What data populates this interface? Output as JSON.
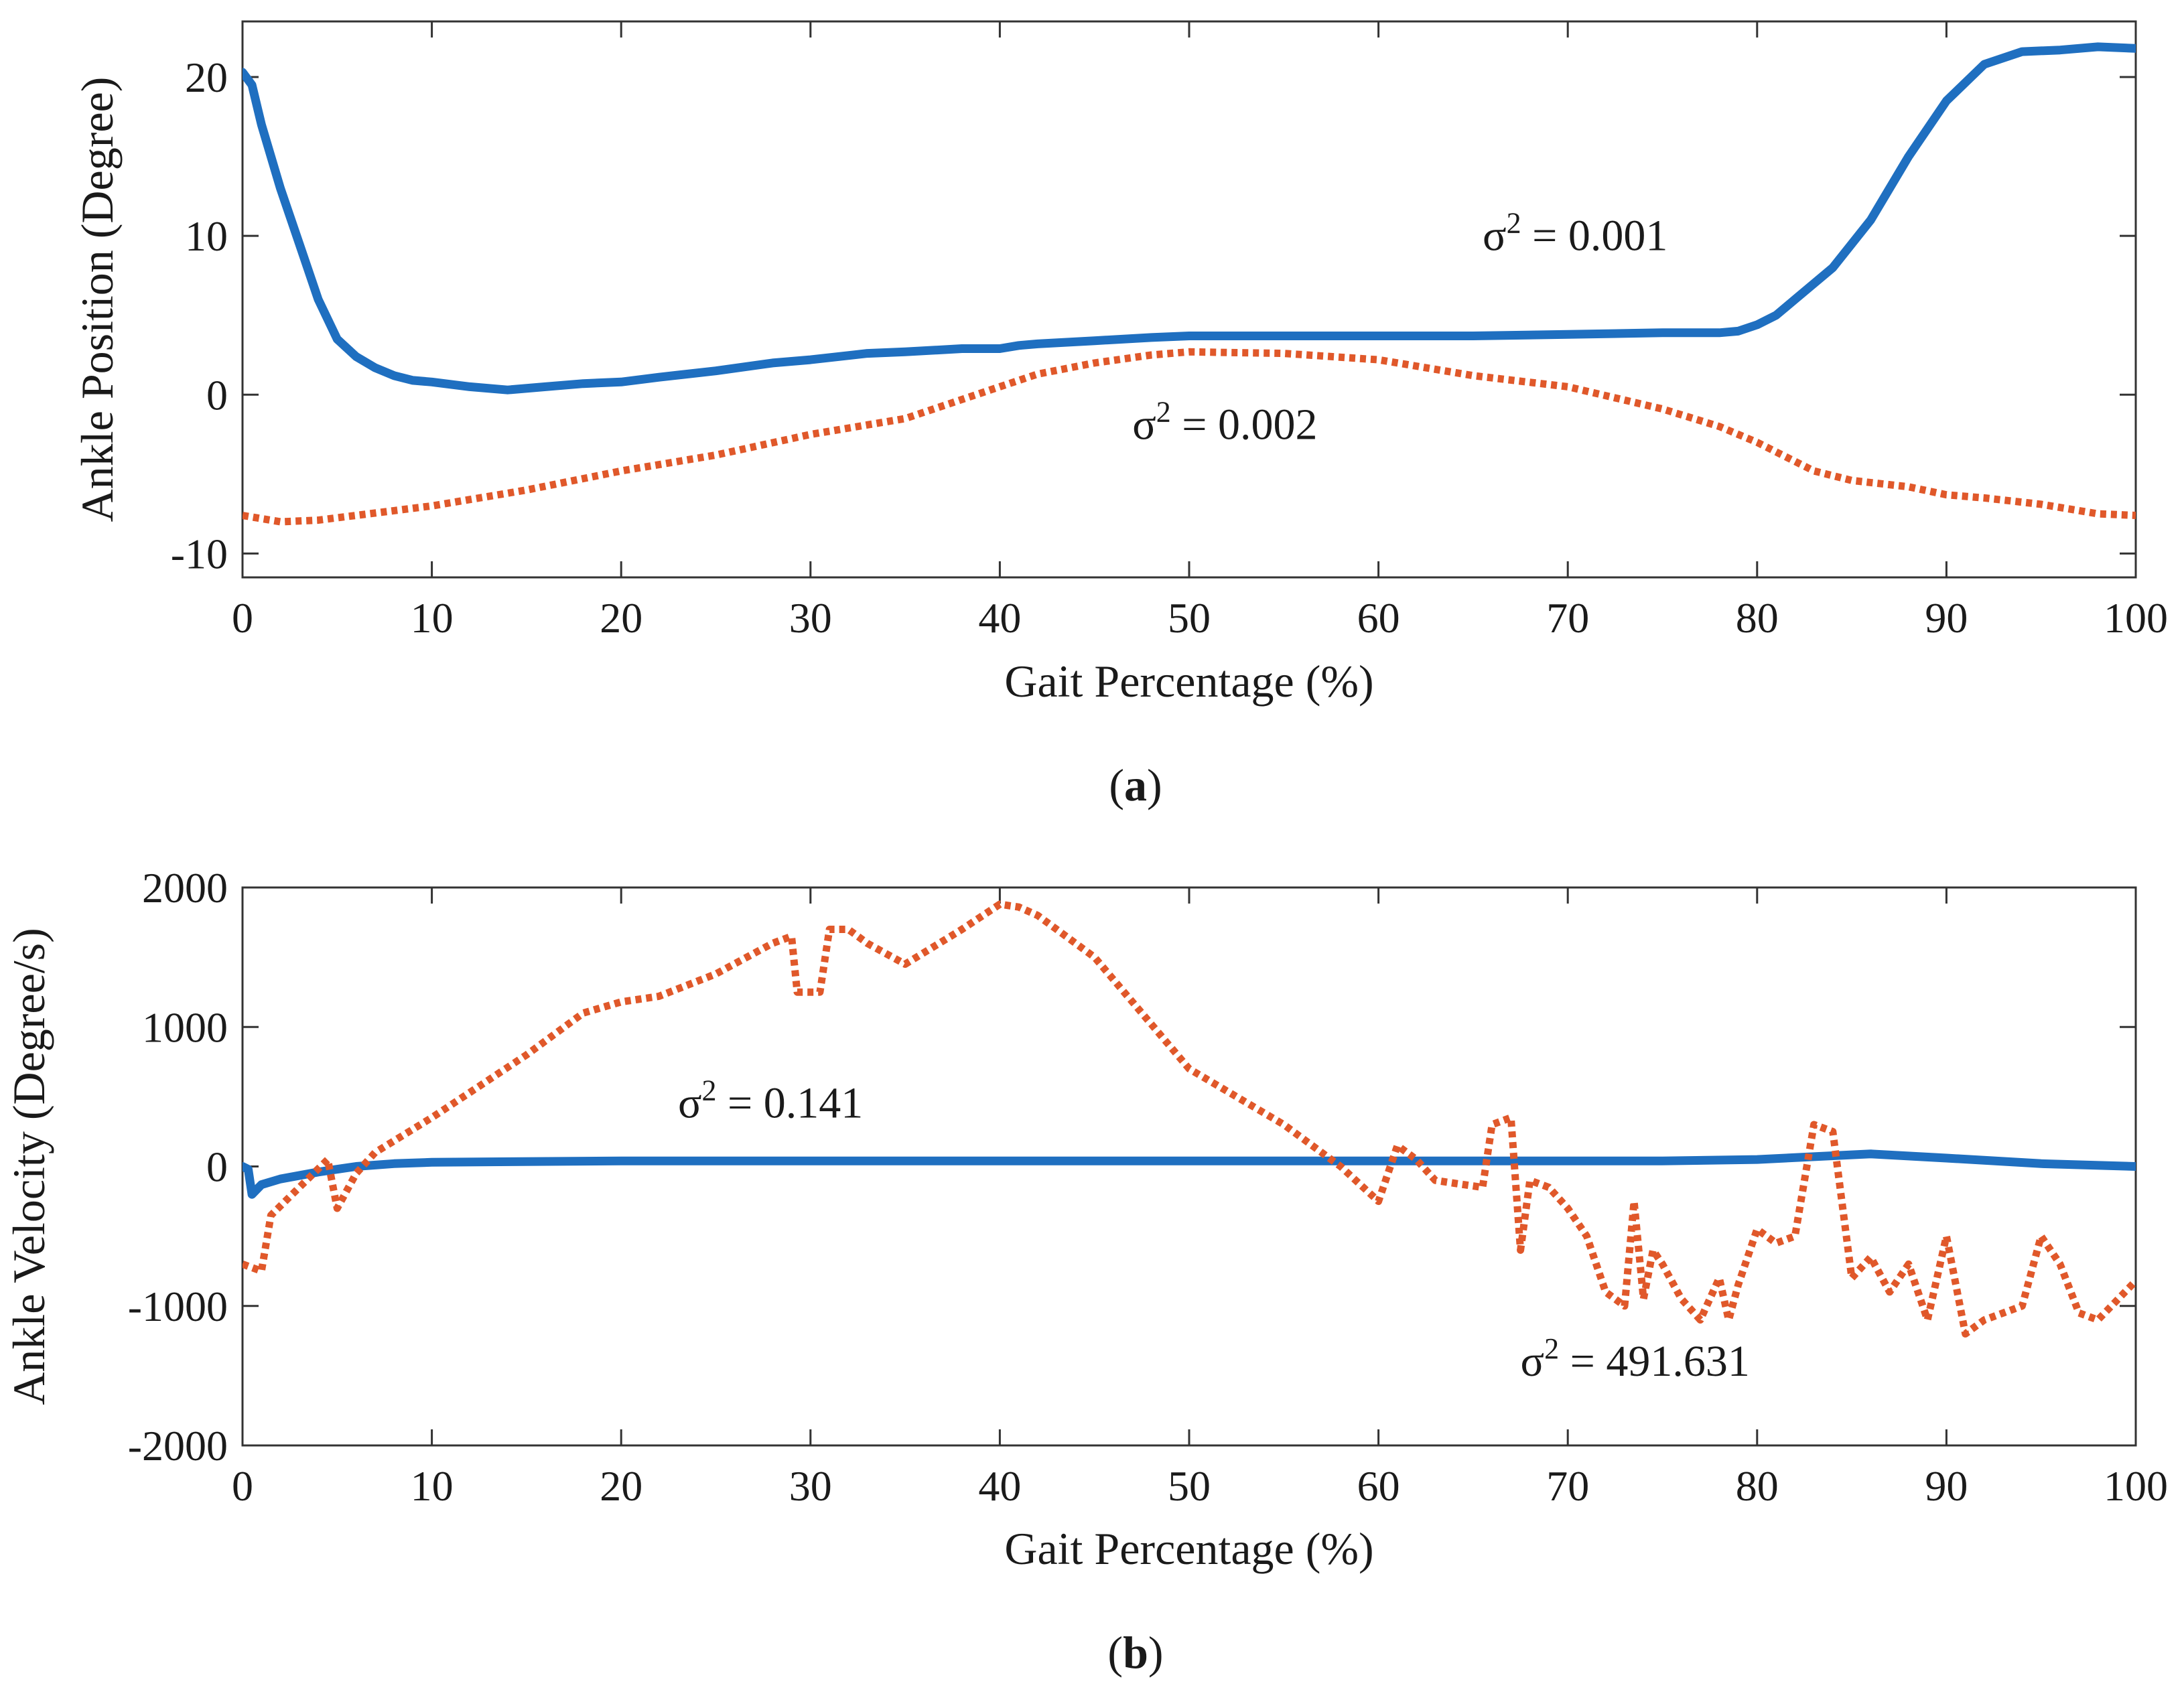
{
  "chart_data": [
    {
      "type": "line",
      "panel": "a",
      "panel_label": {
        "open": "(",
        "letter": "a",
        "close": ")"
      },
      "xlabel": "Gait Percentage  (%)",
      "ylabel": "Ankle Position (Degree)",
      "xlim": [
        0,
        100
      ],
      "ylim": [
        -11.5,
        23.5
      ],
      "xticks": [
        0,
        10,
        20,
        30,
        40,
        50,
        60,
        70,
        80,
        90,
        100
      ],
      "xtick_labels": [
        "0",
        "10",
        "20",
        "30",
        "40",
        "50",
        "60",
        "70",
        "80",
        "90",
        "100"
      ],
      "yticks": [
        -10,
        0,
        10,
        20
      ],
      "ytick_labels": [
        "-10",
        "0",
        "10",
        "20"
      ],
      "series": [
        {
          "name": "solid-series",
          "color": "#1f6fc0",
          "style": "solid",
          "x": [
            0,
            0.5,
            1,
            2,
            3,
            4,
            5,
            6,
            7,
            8,
            9,
            10,
            12,
            14,
            16,
            18,
            20,
            22,
            25,
            28,
            30,
            33,
            35,
            38,
            40,
            41,
            42,
            45,
            48,
            50,
            55,
            60,
            65,
            70,
            75,
            78,
            79,
            80,
            81,
            82,
            84,
            86,
            88,
            90,
            92,
            94,
            96,
            98,
            100
          ],
          "y": [
            20.3,
            19.5,
            17.0,
            13.0,
            9.5,
            6.0,
            3.5,
            2.4,
            1.7,
            1.2,
            0.9,
            0.8,
            0.5,
            0.3,
            0.5,
            0.7,
            0.8,
            1.1,
            1.5,
            2.0,
            2.2,
            2.6,
            2.7,
            2.9,
            2.9,
            3.1,
            3.2,
            3.4,
            3.6,
            3.7,
            3.7,
            3.7,
            3.7,
            3.8,
            3.9,
            3.9,
            4.0,
            4.4,
            5.0,
            6.0,
            8.0,
            11.0,
            15.0,
            18.5,
            20.8,
            21.6,
            21.7,
            21.9,
            21.8
          ]
        },
        {
          "name": "dotted-series",
          "color": "#e0582a",
          "style": "dotted",
          "x": [
            0,
            2,
            4,
            6,
            8,
            10,
            15,
            20,
            25,
            30,
            35,
            40,
            42,
            45,
            48,
            50,
            55,
            60,
            65,
            70,
            75,
            78,
            80,
            83,
            85,
            88,
            90,
            92,
            95,
            98,
            100
          ],
          "y": [
            -7.6,
            -8.0,
            -7.9,
            -7.6,
            -7.3,
            -7.0,
            -6.0,
            -4.8,
            -3.8,
            -2.5,
            -1.5,
            0.5,
            1.3,
            2.0,
            2.5,
            2.7,
            2.6,
            2.2,
            1.2,
            0.5,
            -0.9,
            -2.0,
            -3.0,
            -4.8,
            -5.4,
            -5.8,
            -6.3,
            -6.5,
            -6.9,
            -7.5,
            -7.6
          ]
        }
      ],
      "annotations": [
        {
          "sigma": "σ",
          "sup": "2",
          "text": " = 0.001",
          "x": 65.5,
          "y": 9.1
        },
        {
          "sigma": "σ",
          "sup": "2",
          "text": " = 0.002",
          "x": 47.0,
          "y": -2.8
        }
      ]
    },
    {
      "type": "line",
      "panel": "b",
      "panel_label": {
        "open": "(",
        "letter": "b",
        "close": ")"
      },
      "xlabel": "Gait Percentage  (%)",
      "ylabel": "Ankle Velocity (Degree/s)",
      "xlim": [
        0,
        100
      ],
      "ylim": [
        -2000,
        2000
      ],
      "xticks": [
        0,
        10,
        20,
        30,
        40,
        50,
        60,
        70,
        80,
        90,
        100
      ],
      "xtick_labels": [
        "0",
        "10",
        "20",
        "30",
        "40",
        "50",
        "60",
        "70",
        "80",
        "90",
        "100"
      ],
      "yticks": [
        -2000,
        -1000,
        0,
        1000,
        2000
      ],
      "ytick_labels": [
        "-2000",
        "-1000",
        "0",
        "1000",
        "2000"
      ],
      "series": [
        {
          "name": "solid-series",
          "color": "#1f6fc0",
          "style": "solid",
          "x": [
            0,
            0.3,
            0.5,
            1,
            2,
            4,
            6,
            8,
            10,
            20,
            30,
            40,
            50,
            60,
            70,
            75,
            80,
            83,
            86,
            90,
            95,
            100
          ],
          "y": [
            0,
            -20,
            -200,
            -130,
            -90,
            -40,
            0,
            20,
            30,
            40,
            40,
            40,
            40,
            40,
            40,
            40,
            50,
            70,
            90,
            60,
            20,
            0
          ]
        },
        {
          "name": "dotted-series",
          "color": "#e0582a",
          "style": "dotted",
          "x": [
            0,
            1,
            1.5,
            3,
            4.5,
            5,
            6,
            7,
            10,
            15,
            18,
            20,
            22,
            25,
            28,
            29,
            29.3,
            30.5,
            31,
            32,
            33,
            35,
            38,
            40,
            41,
            42,
            45,
            50,
            55,
            58,
            60,
            61,
            62,
            63,
            64,
            65.5,
            66,
            67,
            67.5,
            68,
            69,
            70,
            71,
            72,
            73,
            73.5,
            74,
            74.5,
            75,
            76,
            77,
            78,
            78.5,
            79,
            80,
            81,
            82,
            83,
            84,
            85,
            86,
            87,
            88,
            89,
            90,
            91,
            92,
            93,
            94,
            95,
            96,
            97,
            98,
            100
          ],
          "y": [
            -700,
            -750,
            -350,
            -150,
            50,
            -300,
            -50,
            100,
            350,
            800,
            1100,
            1180,
            1220,
            1380,
            1600,
            1650,
            1250,
            1250,
            1700,
            1700,
            1600,
            1450,
            1700,
            1880,
            1860,
            1800,
            1500,
            700,
            300,
            0,
            -250,
            150,
            50,
            -100,
            -120,
            -150,
            300,
            350,
            -600,
            -100,
            -150,
            -300,
            -500,
            -900,
            -1000,
            -250,
            -950,
            -600,
            -700,
            -950,
            -1100,
            -800,
            -1100,
            -850,
            -450,
            -550,
            -500,
            300,
            250,
            -800,
            -650,
            -900,
            -700,
            -1100,
            -500,
            -1200,
            -1100,
            -1050,
            -1000,
            -500,
            -700,
            -1050,
            -1100,
            -820
          ]
        }
      ],
      "annotations": [
        {
          "sigma": "σ",
          "sup": "2",
          "text": " = 0.141",
          "x": 23.0,
          "y": 350
        },
        {
          "sigma": "σ",
          "sup": "2",
          "text": " = 491.631",
          "x": 67.5,
          "y": -1500
        }
      ]
    }
  ]
}
